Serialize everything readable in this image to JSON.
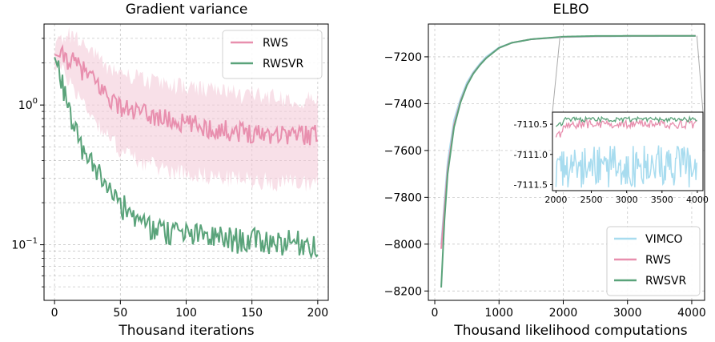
{
  "chart_data": [
    {
      "type": "line",
      "title": "Gradient variance",
      "xlabel": "Thousand iterations",
      "ylabel": "",
      "yscale": "log",
      "xlim": [
        -8,
        208
      ],
      "ylim": [
        0.04,
        3.8
      ],
      "xticks": [
        0,
        50,
        100,
        150,
        200
      ],
      "yticks": [
        {
          "value": 1.0,
          "label": "10^0"
        },
        {
          "value": 0.1,
          "label": "10^-1"
        }
      ],
      "grid": true,
      "legend": {
        "position": "top-right",
        "entries": [
          "RWS",
          "RWSVR"
        ]
      },
      "series": [
        {
          "name": "RWS",
          "color": "#e88fae",
          "band_color": "#f3c6d5",
          "x": [
            0,
            10,
            20,
            30,
            40,
            50,
            60,
            70,
            80,
            90,
            100,
            110,
            120,
            130,
            140,
            150,
            160,
            170,
            180,
            190,
            200
          ],
          "values": [
            2.3,
            2.1,
            1.8,
            1.45,
            1.15,
            0.95,
            0.88,
            0.84,
            0.8,
            0.75,
            0.72,
            0.7,
            0.66,
            0.65,
            0.64,
            0.63,
            0.62,
            0.62,
            0.61,
            0.61,
            0.6
          ],
          "band_low": [
            2.0,
            1.55,
            1.1,
            0.8,
            0.6,
            0.48,
            0.42,
            0.38,
            0.36,
            0.34,
            0.33,
            0.32,
            0.31,
            0.3,
            0.3,
            0.29,
            0.29,
            0.28,
            0.28,
            0.28,
            0.28
          ],
          "band_high": [
            2.6,
            3.3,
            2.9,
            2.3,
            1.9,
            1.7,
            1.6,
            1.5,
            1.45,
            1.4,
            1.35,
            1.3,
            1.28,
            1.25,
            1.2,
            1.2,
            1.18,
            1.15,
            1.12,
            1.1,
            1.1
          ]
        },
        {
          "name": "RWSVR",
          "color": "#5aa37a",
          "x": [
            0,
            5,
            10,
            15,
            20,
            25,
            30,
            35,
            40,
            45,
            50,
            60,
            70,
            80,
            90,
            100,
            110,
            120,
            130,
            140,
            150,
            160,
            170,
            180,
            190,
            200
          ],
          "values": [
            2.2,
            1.5,
            0.95,
            0.72,
            0.5,
            0.42,
            0.36,
            0.32,
            0.28,
            0.24,
            0.2,
            0.16,
            0.14,
            0.13,
            0.125,
            0.12,
            0.118,
            0.115,
            0.113,
            0.11,
            0.11,
            0.108,
            0.107,
            0.106,
            0.105,
            0.103
          ]
        }
      ]
    },
    {
      "type": "line",
      "title": "ELBO",
      "xlabel": "Thousand likelihood computations",
      "ylabel": "",
      "xlim": [
        -100,
        4200
      ],
      "ylim": [
        -8240,
        -7060
      ],
      "xticks": [
        0,
        1000,
        2000,
        3000,
        4000
      ],
      "yticks": [
        -7200,
        -7400,
        -7600,
        -7800,
        -8000,
        -8200
      ],
      "grid": true,
      "legend": {
        "position": "bottom-right",
        "entries": [
          "VIMCO",
          "RWS",
          "RWSVR"
        ]
      },
      "series": [
        {
          "name": "VIMCO",
          "color": "#a8dcef",
          "x": [
            100,
            150,
            200,
            300,
            400,
            500,
            600,
            700,
            800,
            1000,
            1200,
            1500,
            2000,
            2500,
            3000,
            3500,
            4000
          ],
          "values": [
            -8000,
            -7820,
            -7650,
            -7470,
            -7380,
            -7310,
            -7265,
            -7230,
            -7200,
            -7160,
            -7140,
            -7125,
            -7116,
            -7113,
            -7112,
            -7111.5,
            -7111
          ]
        },
        {
          "name": "RWS",
          "color": "#e88fae",
          "x": [
            100,
            150,
            200,
            300,
            400,
            500,
            600,
            700,
            800,
            1000,
            1200,
            1500,
            2000,
            2500,
            3000,
            3500,
            4000
          ],
          "values": [
            -8020,
            -7850,
            -7680,
            -7490,
            -7390,
            -7320,
            -7270,
            -7235,
            -7205,
            -7162,
            -7140,
            -7125,
            -7115,
            -7112,
            -7111,
            -7110.6,
            -7110.5
          ]
        },
        {
          "name": "RWSVR",
          "color": "#5aa37a",
          "x": [
            100,
            150,
            200,
            300,
            400,
            500,
            600,
            700,
            800,
            1000,
            1200,
            1500,
            2000,
            2500,
            3000,
            3500,
            4000
          ],
          "values": [
            -8185,
            -7900,
            -7700,
            -7500,
            -7395,
            -7322,
            -7272,
            -7236,
            -7206,
            -7162,
            -7140,
            -7125,
            -7114,
            -7111,
            -7110.6,
            -7110.5,
            -7110.4
          ]
        }
      ],
      "inset": {
        "xlim": [
          1950,
          4080
        ],
        "ylim": [
          -7111.6,
          -7110.3
        ],
        "xticks": [
          2000,
          2500,
          3000,
          3500,
          4000
        ],
        "yticks": [
          -7110.5,
          -7111.0,
          -7111.5
        ],
        "ytick_labels": [
          "-7110.5",
          "-7111.0",
          "-7111.5"
        ]
      }
    }
  ]
}
